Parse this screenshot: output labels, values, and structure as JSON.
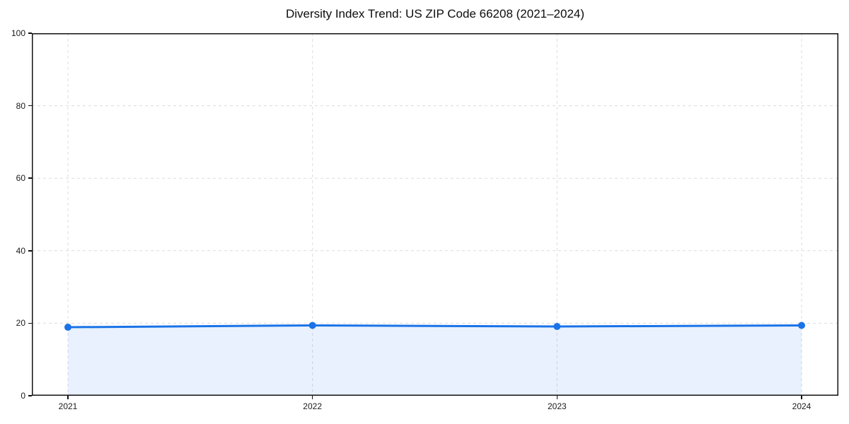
{
  "title": "Diversity Index Trend: US ZIP Code 66208 (2021–2024)",
  "chart_data": {
    "type": "area",
    "title": "Diversity Index Trend: US ZIP Code 66208 (2021–2024)",
    "categories": [
      "2021",
      "2022",
      "2023",
      "2024"
    ],
    "series": [
      {
        "name": "Diversity Index",
        "values": [
          18.9,
          19.4,
          19.1,
          19.4
        ]
      }
    ],
    "xlabel": "",
    "ylabel": "",
    "ylim": [
      0,
      100
    ],
    "y_ticks": [
      0,
      20,
      40,
      60,
      80,
      100
    ],
    "grid": true,
    "grid_style": "dashed",
    "legend_position": "none",
    "line_color": "#1a73e8",
    "marker": "circle",
    "marker_radius": 5,
    "line_width": 3,
    "fill_color": "rgba(26,115,232,0.10)",
    "grid_color": "#dcdcdc",
    "spine_color": "#111111",
    "background": "#ffffff"
  }
}
